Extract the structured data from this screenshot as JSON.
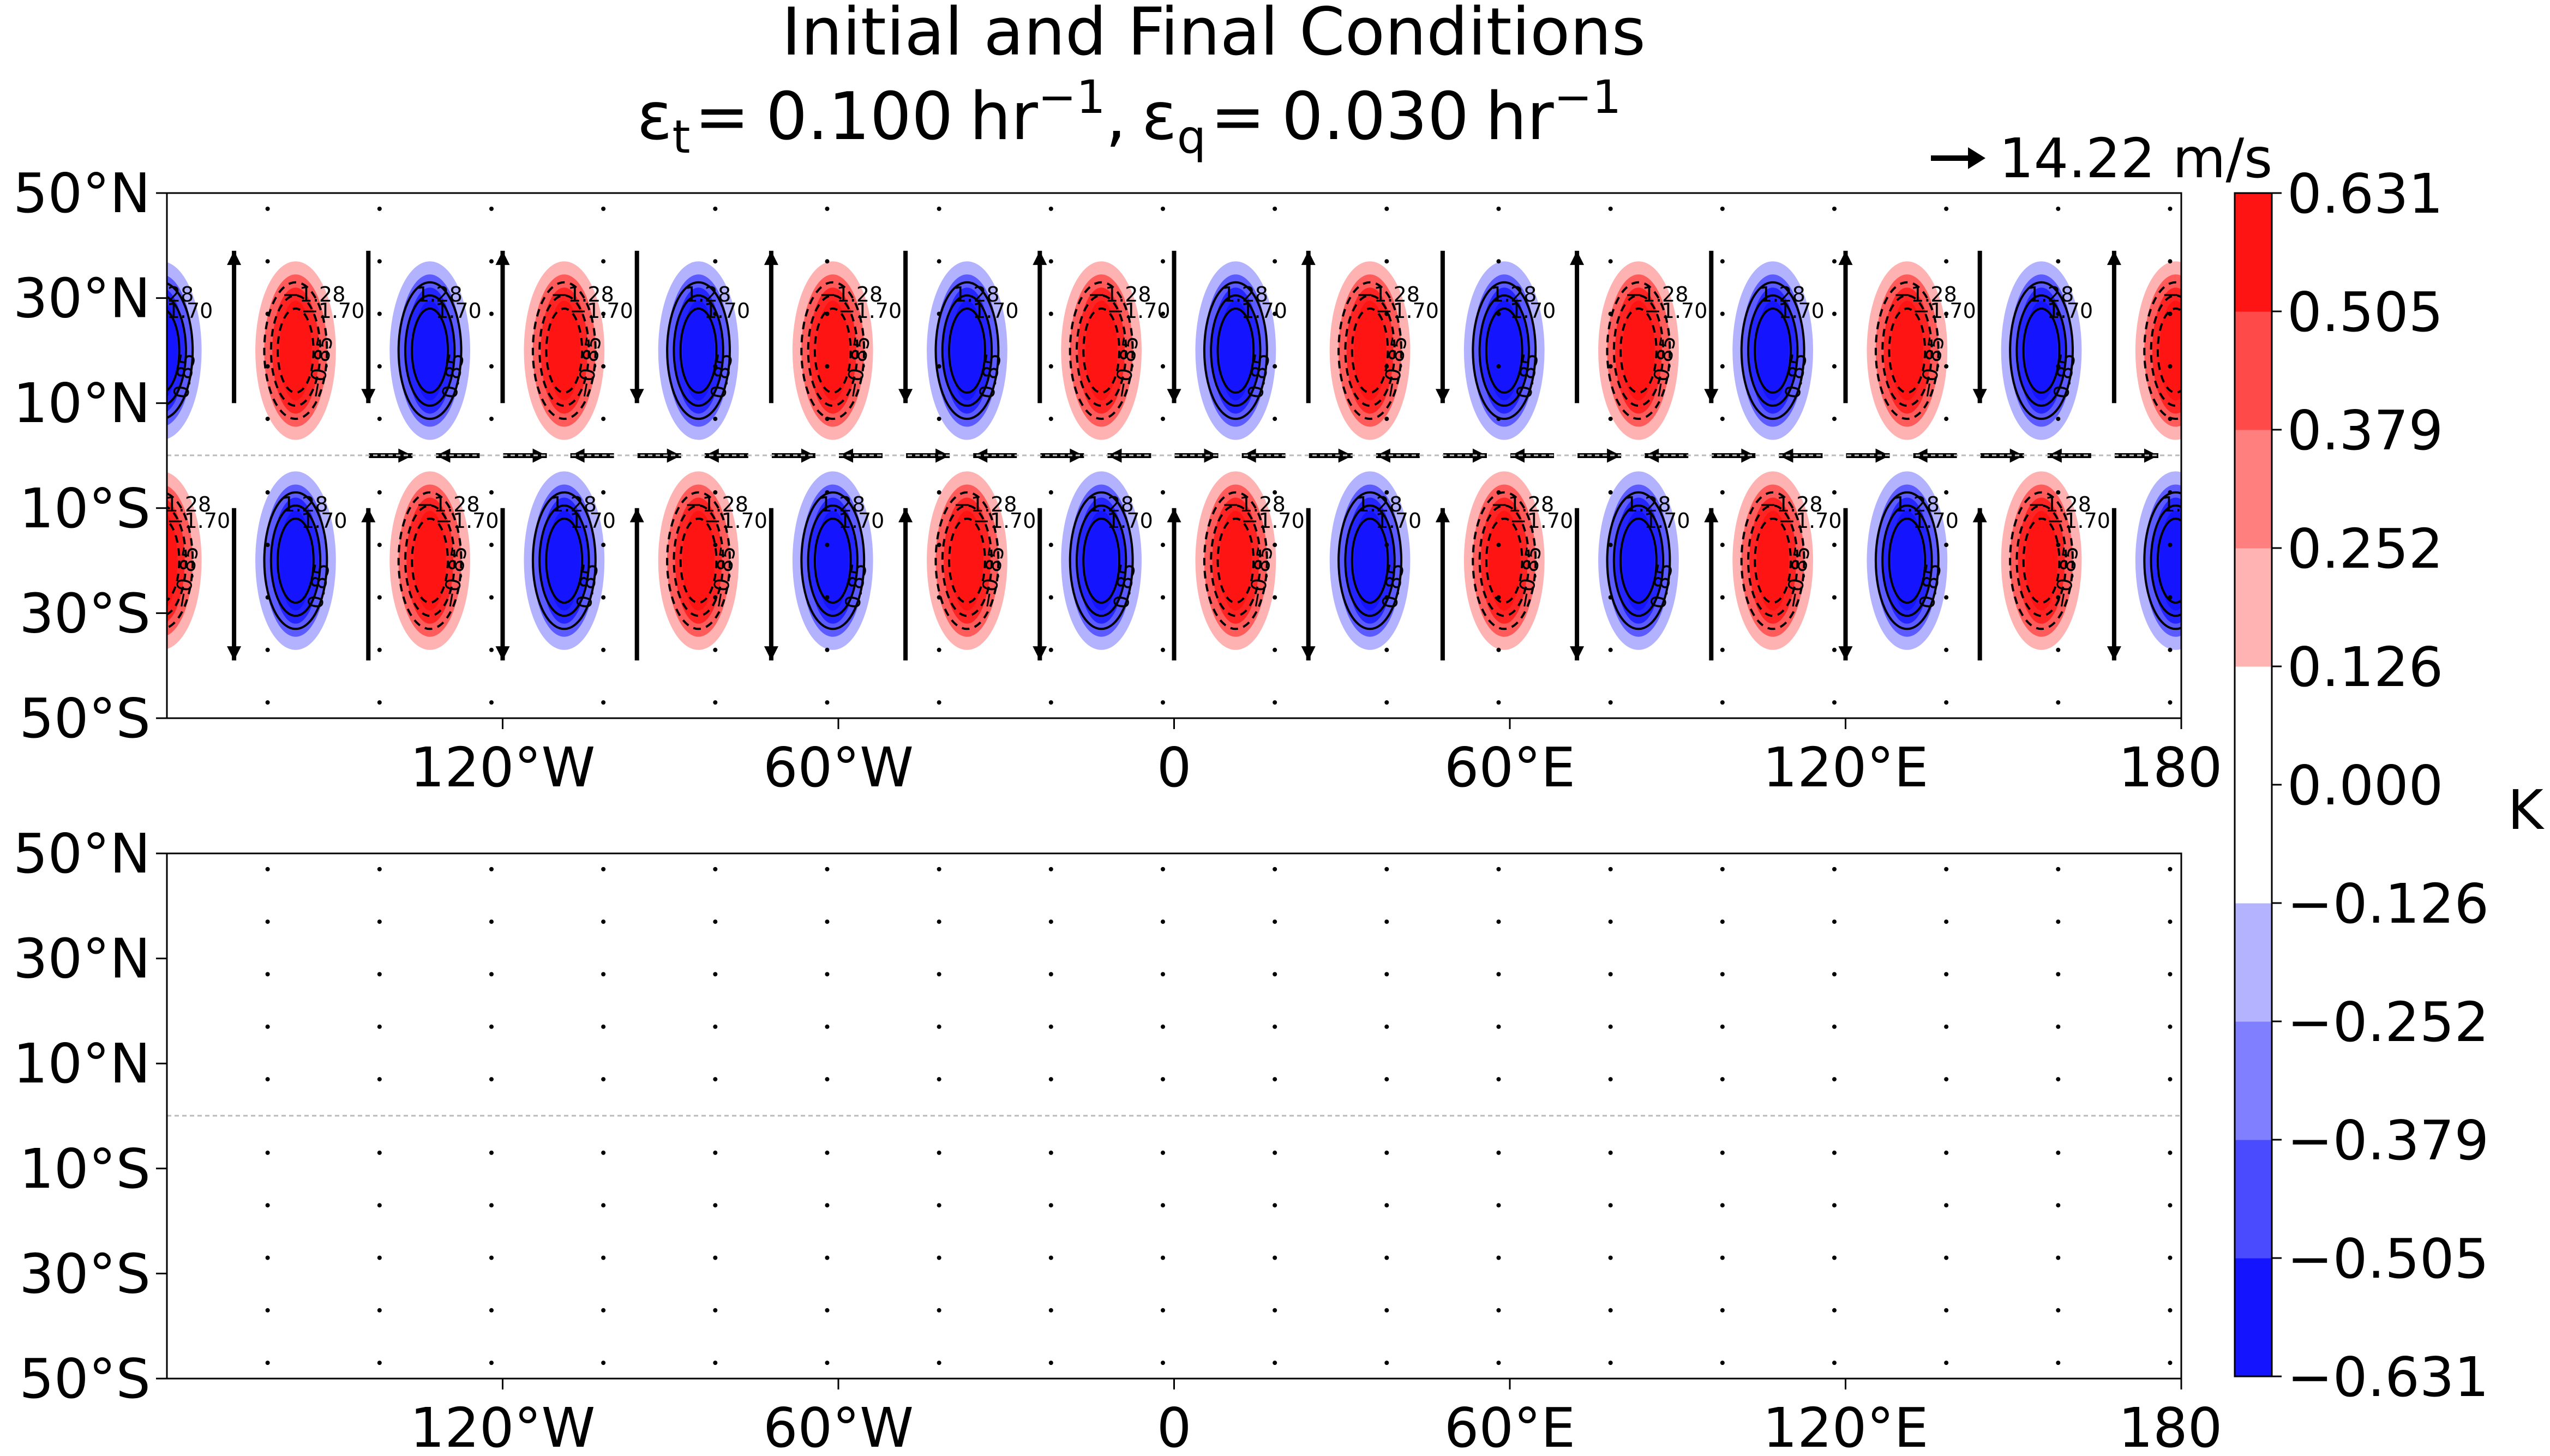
{
  "title_line1": "Initial and Final Conditions",
  "title_line2": {
    "eps": "ε",
    "sub_t": "t",
    "value_t": "0.100",
    "sub_q": "q",
    "value_q": "0.030",
    "unit": "hr",
    "exponent": "−1",
    "equals": "=",
    "separator": ","
  },
  "quiver_key_label": "14.22 m/s",
  "colorbar": {
    "label": "K",
    "ticks": [
      "0.631",
      "0.505",
      "0.379",
      "0.252",
      "0.126",
      "0.000",
      "−0.126",
      "−0.252",
      "−0.379",
      "−0.505",
      "−0.631"
    ],
    "level_colors": [
      "#1414ff",
      "#4a4aff",
      "#7f7fff",
      "#b3b3ff",
      "#ffffff",
      "#ffffff",
      "#ffb3b3",
      "#ff7f7f",
      "#ff4a4a",
      "#ff1414"
    ]
  },
  "colors": {
    "positive": "#ff1414",
    "negative": "#1414ff",
    "contour": "#000000"
  },
  "chart_data": [
    {
      "type": "heatmap",
      "panel": "initial",
      "x_ticks": [
        "120°W",
        "60°W",
        "0",
        "60°E",
        "120°E",
        "180"
      ],
      "y_ticks": [
        "50°N",
        "30°N",
        "10°N",
        "10°S",
        "30°S",
        "50°S"
      ],
      "xlim": [
        -180,
        180
      ],
      "ylim": [
        -50,
        50
      ],
      "wave_centers_lat": [
        20,
        -20
      ],
      "wavelength_deg": 48,
      "first_warm_center_lon": -157,
      "amplitude_K": 0.631,
      "contour_labels": [
        "1.28",
        "1.70",
        "0.85",
        "−1.28",
        "−1.70",
        "−0.85"
      ],
      "colorbar_range": [
        -0.631,
        0.631
      ]
    },
    {
      "type": "heatmap",
      "panel": "final",
      "x_ticks": [
        "120°W",
        "60°W",
        "0",
        "60°E",
        "120°E",
        "180"
      ],
      "y_ticks": [
        "50°N",
        "30°N",
        "10°N",
        "10°S",
        "30°S",
        "50°S"
      ],
      "xlim": [
        -180,
        180
      ],
      "ylim": [
        -50,
        50
      ],
      "amplitude_K": 0.0
    }
  ]
}
